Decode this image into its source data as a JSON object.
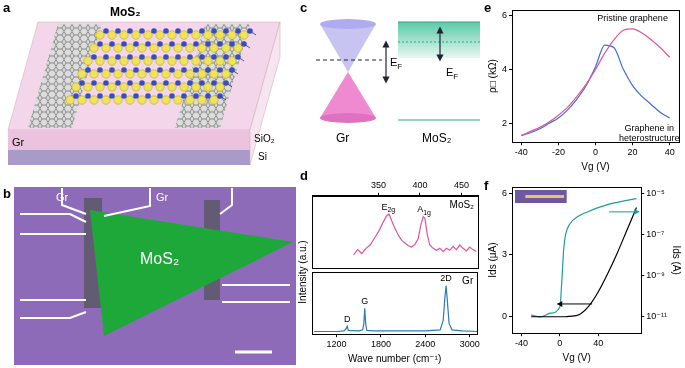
{
  "panels": [
    "a",
    "b",
    "c",
    "d",
    "e",
    "f"
  ],
  "panel_a": {
    "labels": [
      {
        "text": "MoS₂"
      },
      {
        "text": "Gr"
      },
      {
        "text": "SiO₂"
      },
      {
        "text": "Si"
      }
    ]
  },
  "panel_b": {
    "labels": [
      {
        "text": "Gr"
      },
      {
        "text": "Gr"
      },
      {
        "text": "MoS₂"
      }
    ]
  },
  "panel_c": {
    "labels": [
      {
        "text": "Gr"
      },
      {
        "text": "MoS₂"
      }
    ],
    "fermi_level": {
      "text": "E",
      "sub": "F"
    }
  },
  "chart_data": [
    {
      "type": "line",
      "ylabel": "Intensity (a.u.)",
      "grid": false,
      "tick_labels": "x",
      "x": [
        320,
        325,
        330,
        335,
        340,
        345,
        350,
        355,
        360,
        363,
        366,
        370,
        374,
        378,
        382,
        386,
        390,
        394,
        398,
        401,
        404,
        406,
        409,
        412,
        416,
        420,
        424,
        428,
        432,
        436,
        440,
        444,
        448,
        452,
        456,
        460,
        464,
        468
      ],
      "series": [
        {
          "name": "MoS₂",
          "color": "#e0559b",
          "values": [
            0.2,
            0.28,
            0.22,
            0.3,
            0.35,
            0.45,
            0.55,
            0.68,
            0.8,
            0.82,
            0.72,
            0.6,
            0.5,
            0.42,
            0.38,
            0.34,
            0.32,
            0.36,
            0.45,
            0.65,
            0.78,
            0.76,
            0.5,
            0.35,
            0.3,
            0.27,
            0.3,
            0.25,
            0.3,
            0.27,
            0.33,
            0.28,
            0.35,
            0.3,
            0.26,
            0.32,
            0.28,
            0.25
          ]
        }
      ],
      "xlim": [
        270,
        470
      ],
      "xticks": [
        350,
        400,
        450
      ],
      "ylim": [
        0,
        1.1
      ],
      "annotations": [
        {
          "text": "E",
          "sub": "2g",
          "x": 362
        },
        {
          "text": "A",
          "sub": "1g",
          "x": 405
        }
      ]
    },
    {
      "type": "line",
      "xlabel": "Wave number (cm⁻¹)",
      "grid": false,
      "tick_labels": "x",
      "x": [
        900,
        1200,
        1300,
        1330,
        1345,
        1360,
        1500,
        1555,
        1570,
        1582,
        1595,
        1610,
        1700,
        2000,
        2400,
        2600,
        2640,
        2665,
        2680,
        2695,
        2720,
        2760,
        2900,
        3100
      ],
      "series": [
        {
          "name": "Gr",
          "color": "#2b7bb9",
          "values": [
            0.05,
            0.05,
            0.06,
            0.1,
            0.15,
            0.07,
            0.06,
            0.08,
            0.2,
            0.48,
            0.18,
            0.07,
            0.06,
            0.06,
            0.06,
            0.08,
            0.25,
            0.7,
            0.9,
            0.65,
            0.2,
            0.08,
            0.06,
            0.05
          ]
        }
      ],
      "xlim": [
        870,
        3100
      ],
      "xticks": [
        1200,
        1800,
        2400,
        3000
      ],
      "ylim": [
        0,
        1.15
      ],
      "annotations": [
        {
          "text": "D",
          "x": 1345
        },
        {
          "text": "G",
          "x": 1582
        },
        {
          "text": "2D",
          "x": 2680
        }
      ]
    },
    {
      "type": "line",
      "xlabel": "Vg (V)",
      "ylabel": "ρ□ (kΩ)",
      "grid": false,
      "x": [
        -40,
        -35,
        -30,
        -25,
        -20,
        -15,
        -10,
        -5,
        0,
        5,
        10,
        15,
        20,
        25,
        30,
        35,
        40
      ],
      "series": [
        {
          "color": "#e0559b",
          "values": [
            1.55,
            1.7,
            1.85,
            2.05,
            2.3,
            2.6,
            3.0,
            3.45,
            4.0,
            4.6,
            5.1,
            5.45,
            5.5,
            5.35,
            5.1,
            4.8,
            4.45
          ]
        },
        {
          "color": "#3d6fd6",
          "values": [
            1.55,
            1.65,
            1.8,
            2.0,
            2.2,
            2.5,
            2.9,
            3.4,
            4.1,
            4.9,
            4.8,
            4.0,
            3.4,
            3.0,
            2.7,
            2.4,
            2.2
          ]
        }
      ],
      "xlim": [
        -45,
        45
      ],
      "xticks": [
        -40,
        -20,
        0,
        20,
        40
      ],
      "ylim": [
        1.3,
        6.2
      ],
      "yticks": [
        2,
        4,
        6
      ],
      "annotations": [
        {
          "text": "Pristine graphene",
          "x": 20,
          "y": 5.9
        },
        {
          "text": [
            "Graphene in",
            "heterostructure"
          ],
          "x": 29,
          "y": 1.8
        }
      ]
    },
    {
      "type": "line",
      "xlabel": "Vg (V)",
      "ylabel": "Ids (μA)",
      "y2label": "Ids (A)",
      "grid": false,
      "log": "y2",
      "x": [
        -30,
        -20,
        -10,
        0,
        2,
        4,
        6,
        10,
        20,
        30,
        40,
        50,
        60,
        70,
        80
      ],
      "series": [
        {
          "color": "#000000",
          "values": [
            0,
            0,
            0,
            0,
            0,
            0,
            0,
            0.02,
            0.1,
            0.5,
            1.2,
            2.1,
            3.1,
            4.2,
            5.3
          ]
        },
        {
          "color": "#1b9e9a",
          "axis": "y2",
          "values": [
            1.2e-11,
            1e-11,
            1.5e-11,
            3e-11,
            5e-10,
            2e-08,
            1e-07,
            3e-07,
            8e-07,
            1.3e-06,
            2e-06,
            2.8e-06,
            3.6e-06,
            4.5e-06,
            5.5e-06
          ]
        }
      ],
      "xlim": [
        -50,
        85
      ],
      "xticks": [
        -40,
        0,
        40
      ],
      "ylim": [
        -0.8,
        6.3
      ],
      "yticks": [
        0,
        3,
        6
      ],
      "y2lim": [
        1.6e-12,
        2e-05
      ],
      "y2ticks": [
        {
          "value": 1e-11,
          "label": "10⁻¹¹"
        },
        {
          "value": 1e-09,
          "label": "10⁻⁹"
        },
        {
          "value": 1e-07,
          "label": "10⁻⁷"
        },
        {
          "value": 1e-05,
          "label": "10⁻⁵"
        }
      ]
    }
  ]
}
